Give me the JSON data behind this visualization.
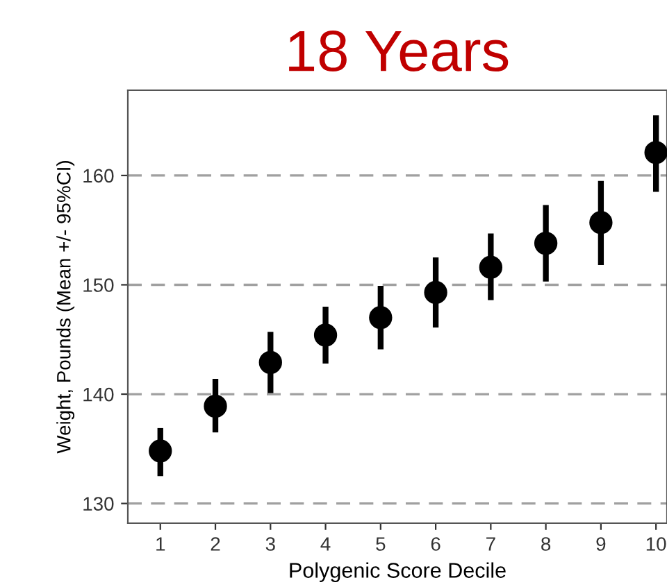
{
  "chart_data": {
    "type": "scatter",
    "title": "18 Years",
    "xlabel": "Polygenic Score Decile",
    "ylabel": "Weight, Pounds (Mean +/- 95%CI)",
    "x": [
      1,
      2,
      3,
      4,
      5,
      6,
      7,
      8,
      9,
      10
    ],
    "values": [
      134.8,
      138.9,
      142.9,
      145.4,
      147.0,
      149.3,
      151.6,
      153.8,
      155.7,
      162.1
    ],
    "errors": [
      [
        132.5,
        136.9
      ],
      [
        136.5,
        141.4
      ],
      [
        140.1,
        145.7
      ],
      [
        142.8,
        148.0
      ],
      [
        144.1,
        149.9
      ],
      [
        146.1,
        152.5
      ],
      [
        148.6,
        154.7
      ],
      [
        150.3,
        157.3
      ],
      [
        151.8,
        159.5
      ],
      [
        158.5,
        165.5
      ]
    ],
    "color": "#000000",
    "marker": "circle",
    "xlim": [
      0.41,
      10.2
    ],
    "xticks": [
      1,
      2,
      3,
      4,
      5,
      6,
      7,
      8,
      9,
      10
    ],
    "ylim": [
      128.2,
      167.8
    ],
    "yticks": [
      130,
      140,
      150,
      160
    ],
    "grid": "y"
  }
}
